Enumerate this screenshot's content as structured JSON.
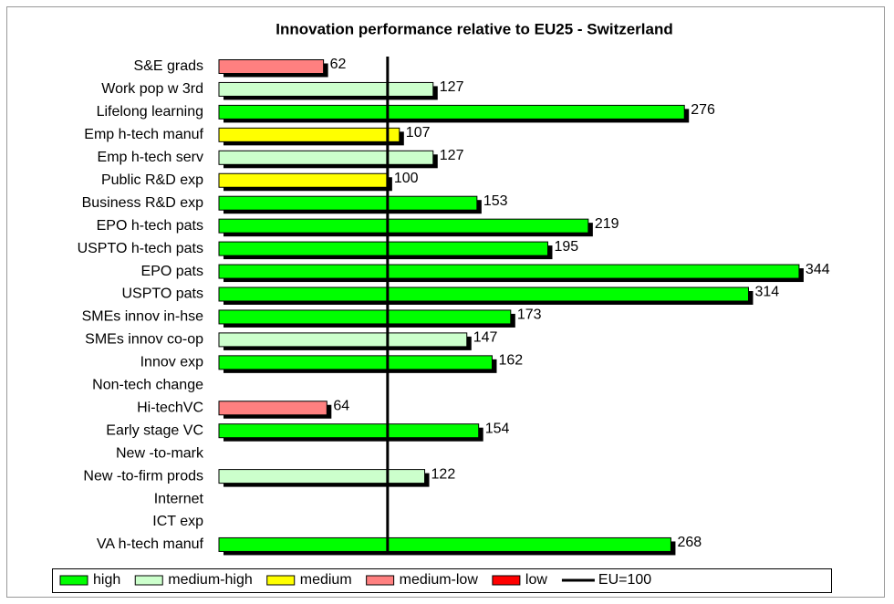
{
  "chart_data": {
    "type": "hbar",
    "title": "Innovation performance relative to EU25 - Switzerland",
    "categories": [
      "S&E grads",
      "Work pop w 3rd",
      "Lifelong learning",
      "Emp h-tech manuf",
      "Emp h-tech serv",
      "Public R&D exp",
      "Business R&D exp",
      "EPO h-tech pats",
      "USPTO h-tech pats",
      "EPO pats",
      "USPTO pats",
      "SMEs innov in-hse",
      "SMEs innov co-op",
      "Innov exp",
      "Non-tech change",
      "Hi-techVC",
      "Early stage VC",
      "New -to-mark",
      "New -to-firm prods",
      "Internet",
      "ICT exp",
      "VA h-tech manuf"
    ],
    "values": [
      62,
      127,
      276,
      107,
      127,
      100,
      153,
      219,
      195,
      344,
      314,
      173,
      147,
      162,
      null,
      64,
      154,
      null,
      122,
      null,
      null,
      268
    ],
    "colors": [
      "#ff8080",
      "#ccffcc",
      "#00ff00",
      "#ffff00",
      "#ccffcc",
      "#ffff00",
      "#00ff00",
      "#00ff00",
      "#00ff00",
      "#00ff00",
      "#00ff00",
      "#00ff00",
      "#ccffcc",
      "#00ff00",
      null,
      "#ff8080",
      "#00ff00",
      null,
      "#ccffcc",
      null,
      null,
      "#00ff00"
    ],
    "xlim": [
      0,
      370
    ],
    "reference_line": {
      "value": 100,
      "label": "EU=100"
    },
    "legend": [
      {
        "name": "high",
        "color": "#00ff00"
      },
      {
        "name": "medium-high",
        "color": "#ccffcc"
      },
      {
        "name": "medium",
        "color": "#ffff00"
      },
      {
        "name": "medium-low",
        "color": "#ff8080"
      },
      {
        "name": "low",
        "color": "#ff0000"
      }
    ]
  }
}
